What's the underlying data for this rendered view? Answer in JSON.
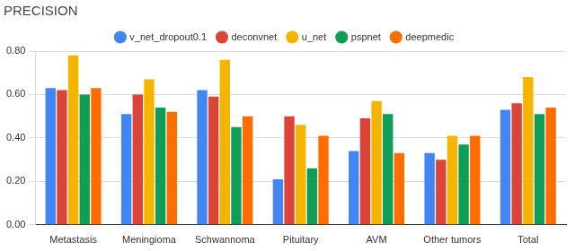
{
  "chart_data": {
    "type": "bar",
    "title": "PRECISION",
    "categories": [
      "Metastasis",
      "Meningioma",
      "Schwannoma",
      "Pituitary",
      "AVM",
      "Other tumors",
      "Total"
    ],
    "series": [
      {
        "name": "v_net_dropout0.1",
        "color": "#4285f4",
        "values": [
          0.63,
          0.51,
          0.62,
          0.21,
          0.34,
          0.33,
          0.53
        ]
      },
      {
        "name": "deconvnet",
        "color": "#db4437",
        "values": [
          0.62,
          0.6,
          0.59,
          0.5,
          0.49,
          0.3,
          0.56
        ]
      },
      {
        "name": "u_net",
        "color": "#f4b400",
        "values": [
          0.78,
          0.67,
          0.76,
          0.46,
          0.57,
          0.41,
          0.68
        ]
      },
      {
        "name": "pspnet",
        "color": "#0f9d58",
        "values": [
          0.6,
          0.54,
          0.45,
          0.26,
          0.51,
          0.37,
          0.51
        ]
      },
      {
        "name": "deepmedic",
        "color": "#ff6d01",
        "values": [
          0.63,
          0.52,
          0.5,
          0.41,
          0.33,
          0.41,
          0.54
        ]
      }
    ],
    "ylim": [
      0,
      0.8
    ],
    "yticks": [
      {
        "value": 0,
        "label": "0.00"
      },
      {
        "value": 0.2,
        "label": "0.20"
      },
      {
        "value": 0.4,
        "label": "0.40"
      },
      {
        "value": 0.6,
        "label": "0.60"
      },
      {
        "value": 0.8,
        "label": "0.80"
      }
    ],
    "grid": true,
    "legend": "top"
  }
}
